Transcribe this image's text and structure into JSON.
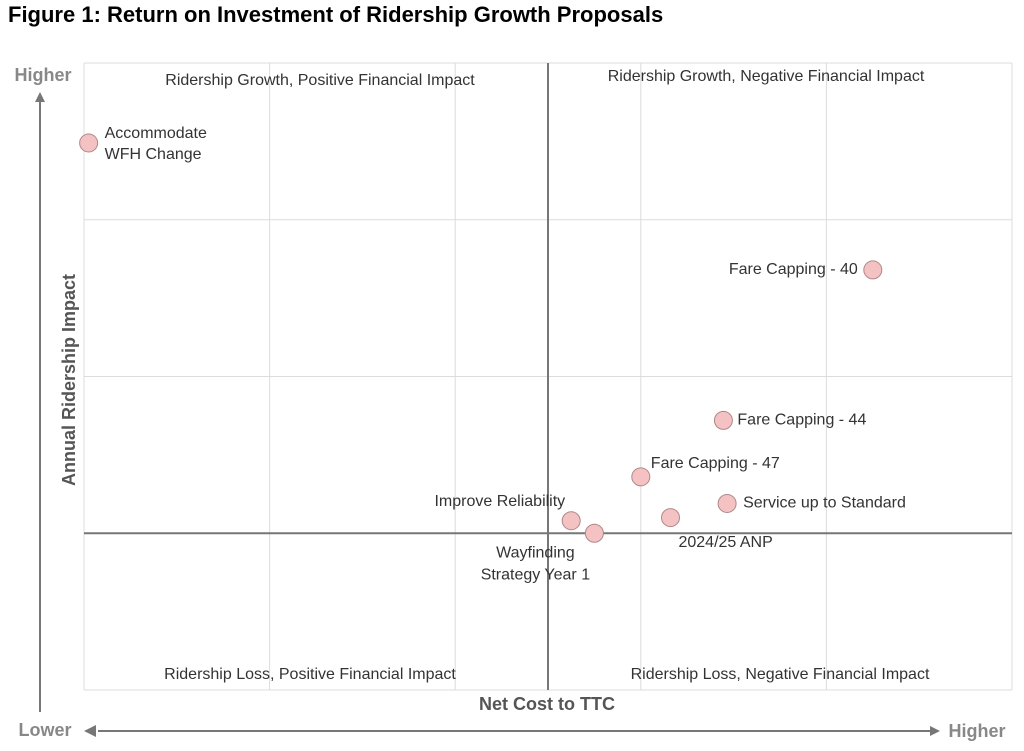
{
  "chart_data": {
    "type": "scatter",
    "title": "Figure 1: Return on Investment of Ridership Growth Proposals",
    "x_label": "Net Cost to TTC",
    "y_label": "Annual Ridership Impact",
    "y_high_label": "Higher",
    "y_low_label": "Lower",
    "x_high_label": "Higher",
    "quadrant_labels": [
      "Ridership Growth, Positive Financial Impact",
      "Ridership Growth, Negative Financial Impact",
      "Ridership Loss, Positive Financial Impact",
      "Ridership Loss, Negative Financial Impact"
    ],
    "xlim": [
      -5,
      5
    ],
    "ylim": [
      -1,
      3
    ],
    "xticks": [
      -5,
      -3,
      -1,
      1,
      3,
      5
    ],
    "yticks": [
      -1,
      0,
      1,
      2,
      3
    ],
    "grid": true,
    "color": "#f4c2c2",
    "labels": [
      [
        "Accommodate",
        "WFH Change"
      ],
      [
        "Fare Capping - 40"
      ],
      [
        "Fare Capping - 44"
      ],
      [
        "Fare Capping - 47"
      ],
      [
        "Service up to Standard"
      ],
      [
        "2024/25 ANP"
      ],
      [
        "Improve Reliability"
      ],
      [
        "Wayfinding",
        "Strategy Year 1"
      ]
    ],
    "x": [
      -4.95,
      3.5,
      1.89,
      1.0,
      1.93,
      1.32,
      0.25,
      0.5
    ],
    "y": [
      2.49,
      1.68,
      0.72,
      0.36,
      0.19,
      0.1,
      0.08,
      0.0
    ]
  }
}
